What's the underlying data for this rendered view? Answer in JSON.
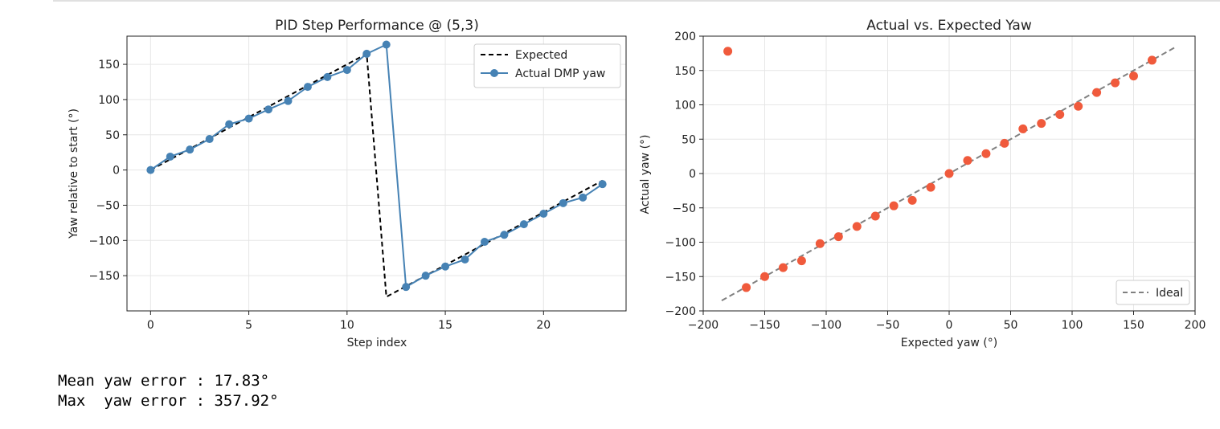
{
  "chart_data": [
    {
      "type": "line",
      "title": "PID Step Performance @ (5,3)",
      "xlabel": "Step index",
      "ylabel": "Yaw relative to start (°)",
      "xlim": [
        -1.2,
        24.2
      ],
      "ylim": [
        -200,
        190
      ],
      "xticks": [
        0,
        5,
        10,
        15,
        20
      ],
      "yticks": [
        -150,
        -100,
        -50,
        0,
        50,
        100,
        150
      ],
      "grid": true,
      "legend": "top-right",
      "series": [
        {
          "name": "Expected",
          "style": "dashed",
          "color": "#000000",
          "x": [
            0,
            11,
            12,
            23
          ],
          "y": [
            0,
            165,
            -180,
            -15
          ]
        },
        {
          "name": "Actual DMP yaw",
          "style": "solid-marker",
          "color": "#4682b4",
          "x": [
            0,
            1,
            2,
            3,
            4,
            5,
            6,
            7,
            8,
            9,
            10,
            11,
            12,
            13,
            14,
            15,
            16,
            17,
            18,
            19,
            20,
            21,
            22,
            23
          ],
          "y": [
            0,
            19,
            29,
            44,
            65,
            73,
            86,
            98,
            118,
            132,
            142,
            165,
            178,
            -166,
            -150,
            -137,
            -127,
            -102,
            -92,
            -77,
            -62,
            -47,
            -39,
            -20
          ]
        }
      ]
    },
    {
      "type": "scatter",
      "title": "Actual vs. Expected Yaw",
      "xlabel": "Expected yaw (°)",
      "ylabel": "Actual yaw (°)",
      "xlim": [
        -200,
        200
      ],
      "ylim": [
        -200,
        200
      ],
      "xticks": [
        -200,
        -150,
        -100,
        -50,
        0,
        50,
        100,
        150,
        200
      ],
      "yticks": [
        -200,
        -150,
        -100,
        -50,
        0,
        50,
        100,
        150,
        200
      ],
      "grid": true,
      "legend": "bottom-right",
      "points": {
        "color": "#f05a3c",
        "x": [
          -180,
          -165,
          -150,
          -135,
          -120,
          -105,
          -90,
          -75,
          -60,
          -45,
          -30,
          -15,
          0,
          15,
          30,
          45,
          60,
          75,
          90,
          105,
          120,
          135,
          150,
          165
        ],
        "y": [
          178,
          -166,
          -150,
          -137,
          -127,
          -102,
          -92,
          -77,
          -62,
          -47,
          -39,
          -20,
          0,
          19,
          29,
          44,
          65,
          73,
          86,
          98,
          118,
          132,
          142,
          165
        ]
      },
      "ideal": {
        "name": "Ideal",
        "color": "#808080",
        "style": "dashed",
        "x": [
          -185,
          185
        ],
        "y": [
          -185,
          185
        ]
      }
    }
  ],
  "output": {
    "mean_line": "Mean yaw error : 17.83°",
    "max_line": "Max  yaw error : 357.92°"
  }
}
